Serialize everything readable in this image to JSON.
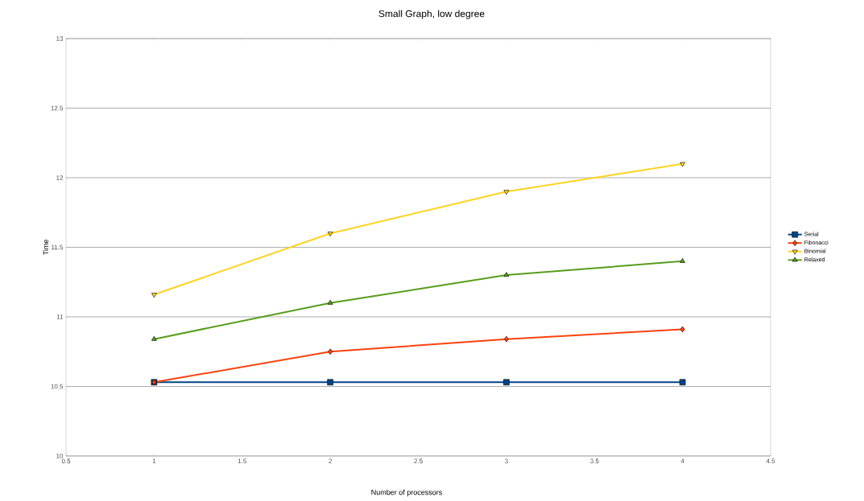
{
  "chart_data": {
    "type": "line",
    "title": "Small Graph, low degree",
    "xlabel": "Number of processors",
    "ylabel": "Time",
    "x": [
      1,
      2,
      3,
      4
    ],
    "series": [
      {
        "name": "Serial",
        "color": "#004586",
        "marker": "square",
        "values": [
          10.53,
          10.53,
          10.53,
          10.53
        ]
      },
      {
        "name": "Fibonacci",
        "color": "#ff420e",
        "marker": "diamond",
        "values": [
          10.53,
          10.75,
          10.84,
          10.91
        ]
      },
      {
        "name": "Binomial",
        "color": "#ffd320",
        "marker": "triangle down",
        "values": [
          11.16,
          11.6,
          11.9,
          12.1
        ]
      },
      {
        "name": "Relaxed",
        "color": "#579d1c",
        "marker": "triangle",
        "values": [
          10.84,
          11.1,
          11.3,
          11.4
        ]
      }
    ],
    "xlim": [
      0.5,
      4.5
    ],
    "xticks": [
      0.5,
      1,
      1.5,
      2,
      2.5,
      3,
      3.5,
      4,
      4.5
    ],
    "ylim": [
      10,
      13
    ],
    "yticks": [
      10,
      10.5,
      11,
      11.5,
      12,
      12.5,
      13
    ],
    "grid": "y",
    "legend": "right",
    "line_style": "solid"
  }
}
